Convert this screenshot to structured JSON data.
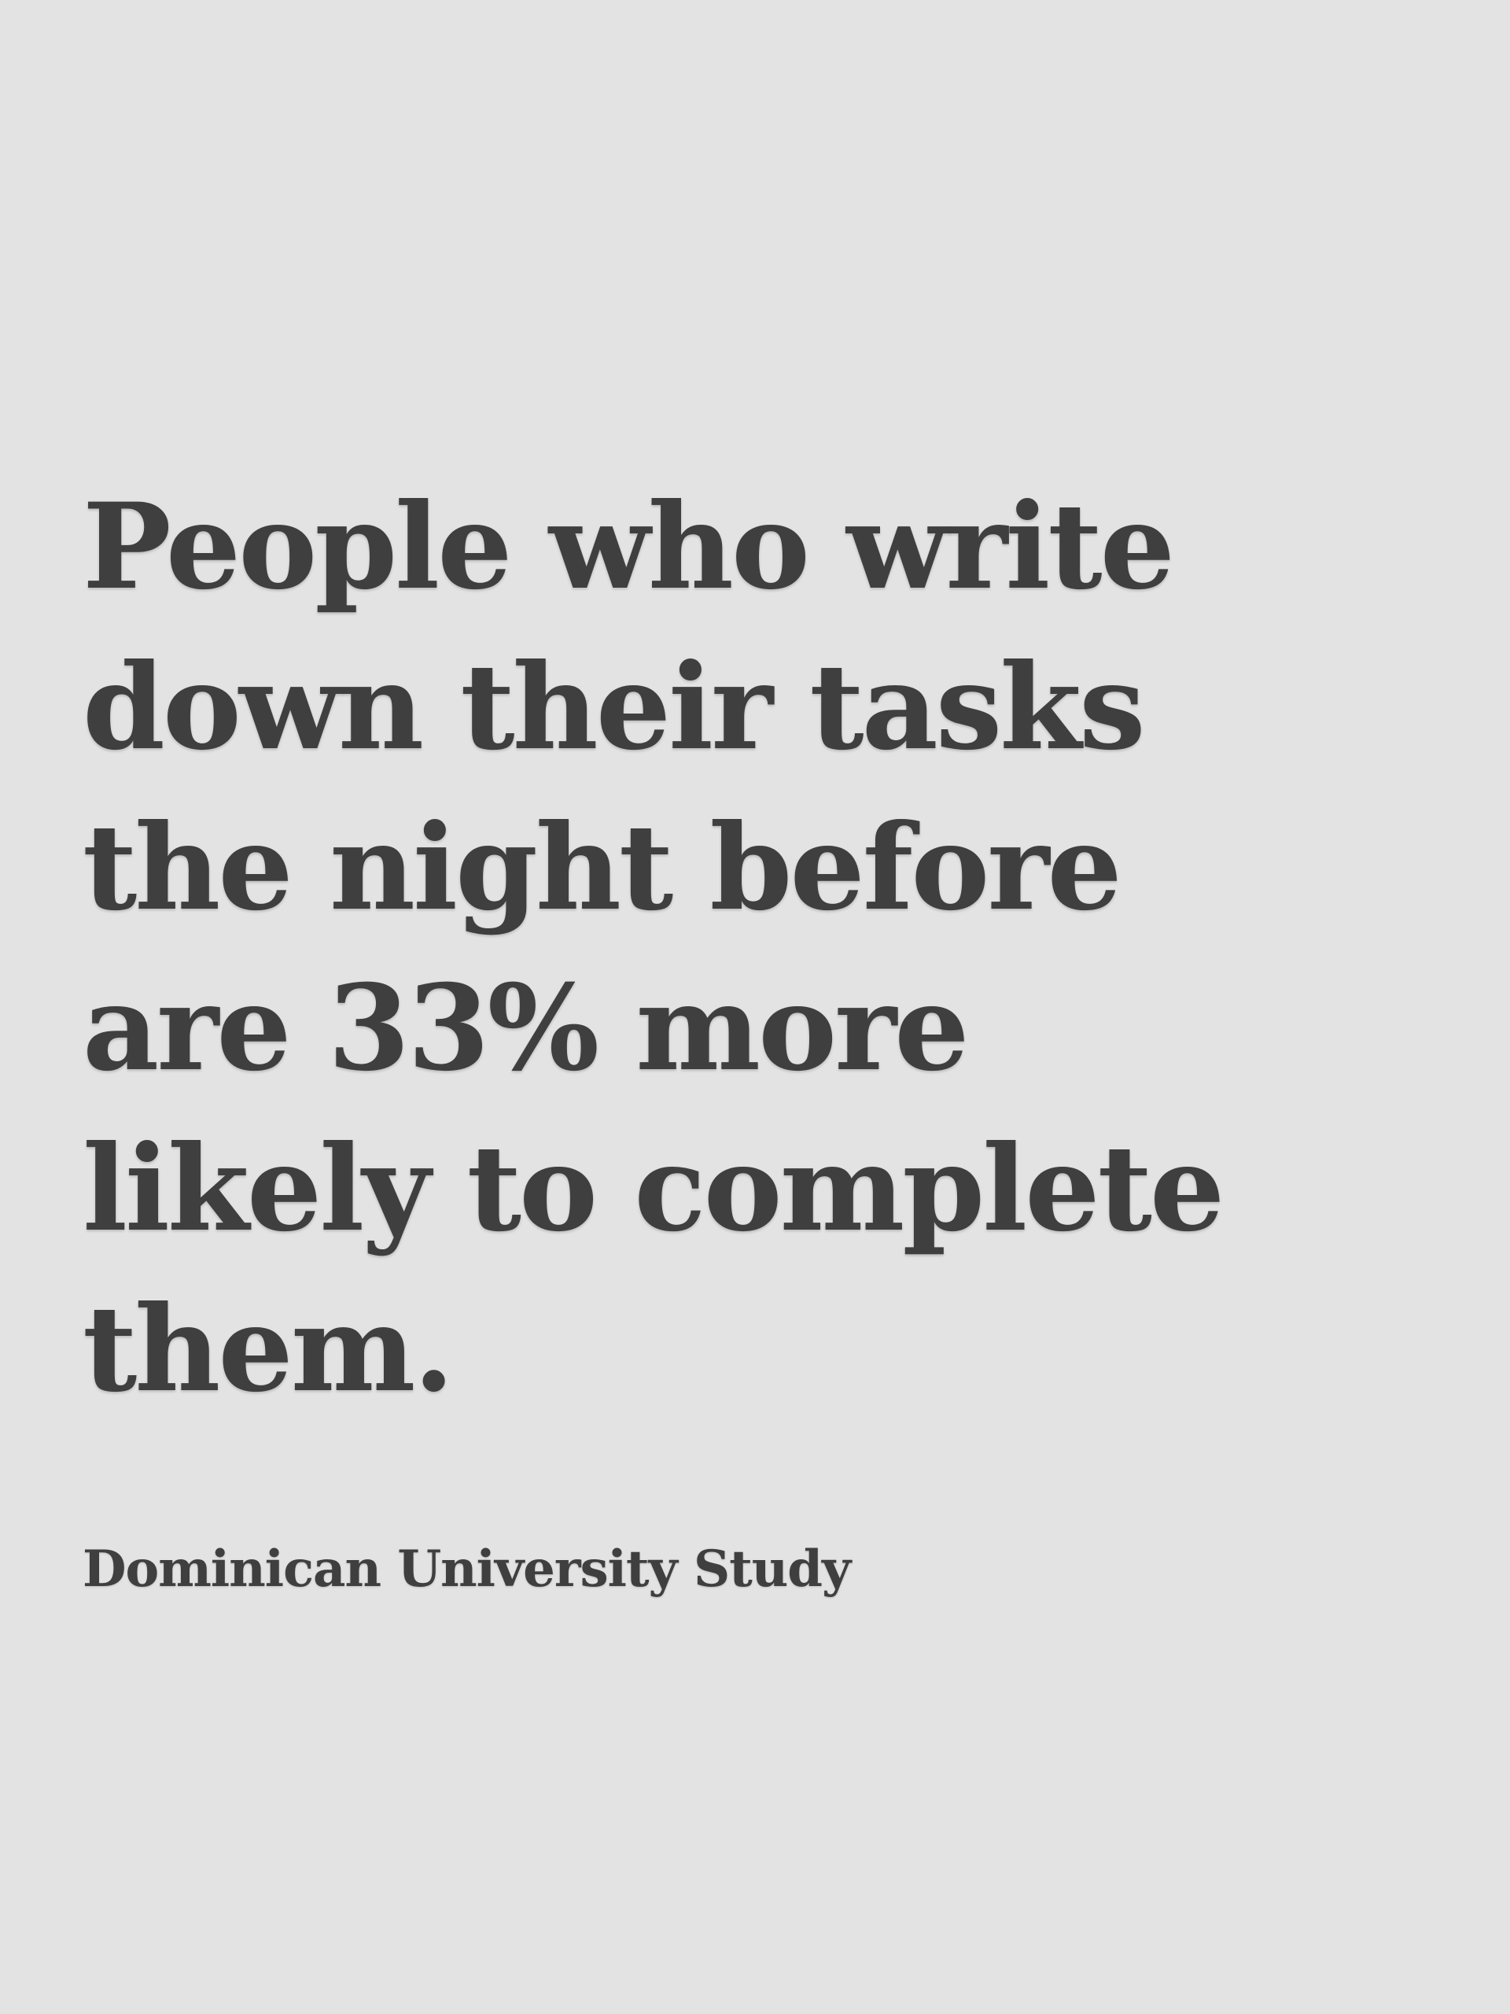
{
  "quote": {
    "lines": [
      "People who write",
      "down their tasks",
      "the night before",
      "are 33% more",
      "likely to complete",
      "them."
    ]
  },
  "source": "Dominican University Study",
  "colors": {
    "background": "#e3e3e3",
    "text": "#3f3f3f"
  }
}
